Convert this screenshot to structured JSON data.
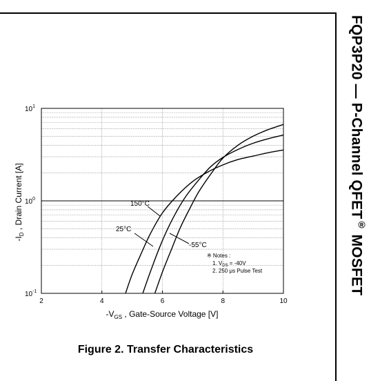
{
  "doc": {
    "side_title": "FQP3P20 — P-Channel QFET",
    "side_title_mark": "®",
    "side_title_suffix": " MOSFET",
    "figure_caption": "Figure 2. Transfer Characteristics"
  },
  "chart_data": {
    "type": "line",
    "y_scale": "log",
    "xlim": [
      2,
      10
    ],
    "ylim": [
      0.1,
      10
    ],
    "x_ticks": [
      "2",
      "4",
      "6",
      "8",
      "10"
    ],
    "y_ticks": [
      "10",
      "10",
      "10"
    ],
    "y_tick_exponents": [
      "1",
      "0",
      "-1"
    ],
    "xlabel": {
      "prefix": "-V",
      "sub": "GS",
      "suffix": " , Gate-Source Voltage  [V]"
    },
    "ylabel": {
      "prefix": "-I",
      "sub": "D",
      "suffix": " , Drain Current  [A]"
    },
    "grid": true,
    "series": [
      {
        "name": "150°C",
        "x": [
          4.78,
          5.0,
          5.3,
          5.6,
          6.0,
          6.5,
          7.0,
          7.5,
          8.0,
          8.5,
          9.0,
          9.5,
          10.0
        ],
        "y": [
          0.1,
          0.16,
          0.27,
          0.44,
          0.74,
          1.15,
          1.62,
          2.05,
          2.45,
          2.8,
          3.05,
          3.32,
          3.55
        ]
      },
      {
        "name": "25°C",
        "x": [
          5.35,
          5.6,
          5.9,
          6.2,
          6.5,
          6.8,
          7.2,
          7.6,
          8.0,
          8.5,
          9.0,
          9.5,
          10.0
        ],
        "y": [
          0.1,
          0.17,
          0.31,
          0.52,
          0.8,
          1.15,
          1.68,
          2.35,
          2.95,
          3.6,
          4.2,
          4.7,
          5.15
        ]
      },
      {
        "name": "-55°C",
        "x": [
          5.75,
          6.0,
          6.3,
          6.6,
          6.9,
          7.2,
          7.6,
          8.0,
          8.5,
          9.0,
          9.5,
          10.0
        ],
        "y": [
          0.1,
          0.17,
          0.3,
          0.52,
          0.82,
          1.25,
          1.95,
          2.9,
          4.0,
          5.0,
          5.9,
          6.7
        ]
      }
    ],
    "annotations": {
      "notes_title": "※ Notes :",
      "note_1_prefix": "1. V",
      "note_1_sub": "DS",
      "note_1_suffix": " = -40V",
      "note_2": "2. 250 μs Pulse Test"
    }
  }
}
